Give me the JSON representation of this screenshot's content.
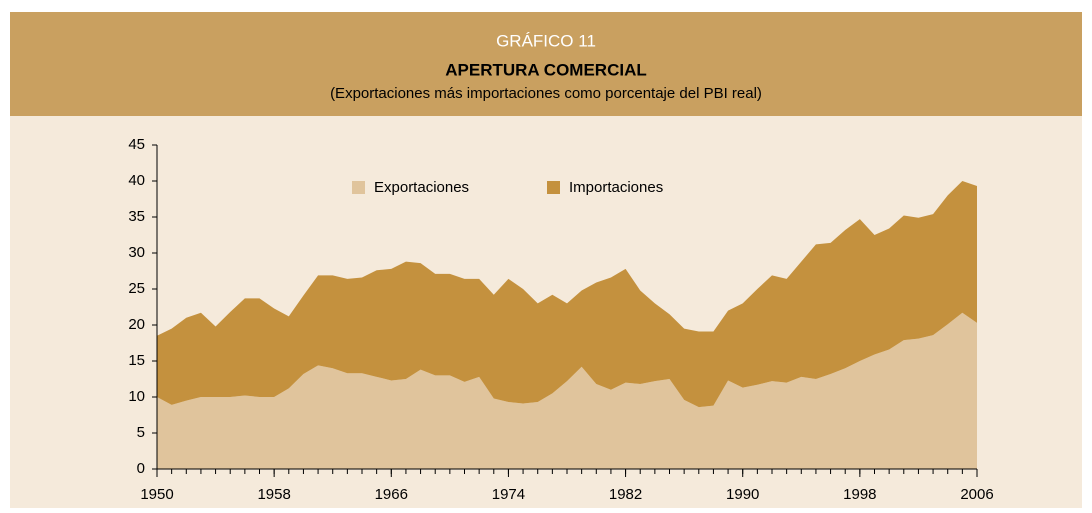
{
  "chart_data": {
    "type": "stacked_area",
    "label": "GRÁFICO 11",
    "title": "APERTURA COMERCIAL",
    "subtitle": "(Exportaciones más importaciones como porcentaje del PBI real)",
    "x": [
      1950,
      1951,
      1952,
      1953,
      1954,
      1955,
      1956,
      1957,
      1958,
      1959,
      1960,
      1961,
      1962,
      1963,
      1964,
      1965,
      1966,
      1967,
      1968,
      1969,
      1970,
      1971,
      1972,
      1973,
      1974,
      1975,
      1976,
      1977,
      1978,
      1979,
      1980,
      1981,
      1982,
      1983,
      1984,
      1985,
      1986,
      1987,
      1988,
      1989,
      1990,
      1991,
      1992,
      1993,
      1994,
      1995,
      1996,
      1997,
      1998,
      1999,
      2000,
      2001,
      2002,
      2003,
      2004,
      2005,
      2006
    ],
    "series": [
      {
        "name": "Exportaciones",
        "color": "#e0c49c",
        "values": [
          10,
          8.9,
          9.5,
          10,
          10,
          10,
          10.2,
          10,
          10,
          11.2,
          13.2,
          14.4,
          14,
          13.3,
          13.3,
          12.8,
          12.3,
          12.5,
          13.8,
          13,
          13,
          12.1,
          12.8,
          9.8,
          9.3,
          9.1,
          9.3,
          10.5,
          12.2,
          14.2,
          11.8,
          11,
          12,
          11.8,
          12.2,
          12.5,
          9.6,
          8.6,
          8.8,
          12.3,
          11.3,
          11.7,
          12.2,
          12,
          12.8,
          12.5,
          13.2,
          14,
          15,
          15.9,
          16.6,
          17.9,
          18.1,
          18.6,
          20.1,
          21.7,
          20.3
        ]
      },
      {
        "name": "Importaciones",
        "color": "#c4913e",
        "values": [
          8.5,
          10.6,
          11.5,
          11.7,
          9.8,
          11.8,
          13.5,
          13.7,
          12.3,
          10,
          10.9,
          12.5,
          12.9,
          13.1,
          13.3,
          14.8,
          15.5,
          16.3,
          14.8,
          14.1,
          14.1,
          14.3,
          13.6,
          14.4,
          17.1,
          15.9,
          13.7,
          13.7,
          10.8,
          10.6,
          14.1,
          15.6,
          15.8,
          13,
          10.8,
          9,
          9.9,
          10.5,
          10.3,
          9.7,
          11.7,
          13.3,
          14.7,
          14.4,
          16,
          18.7,
          18.2,
          19.2,
          19.7,
          16.6,
          16.8,
          17.3,
          16.8,
          16.8,
          17.9,
          18.3,
          19
        ]
      }
    ],
    "xlim": [
      1950,
      2006
    ],
    "xticks": [
      1950,
      1958,
      1966,
      1974,
      1982,
      1990,
      1998,
      2006
    ],
    "ylim": [
      0,
      45
    ],
    "yticks": [
      0,
      5,
      10,
      15,
      20,
      25,
      30,
      35,
      40,
      45
    ]
  }
}
